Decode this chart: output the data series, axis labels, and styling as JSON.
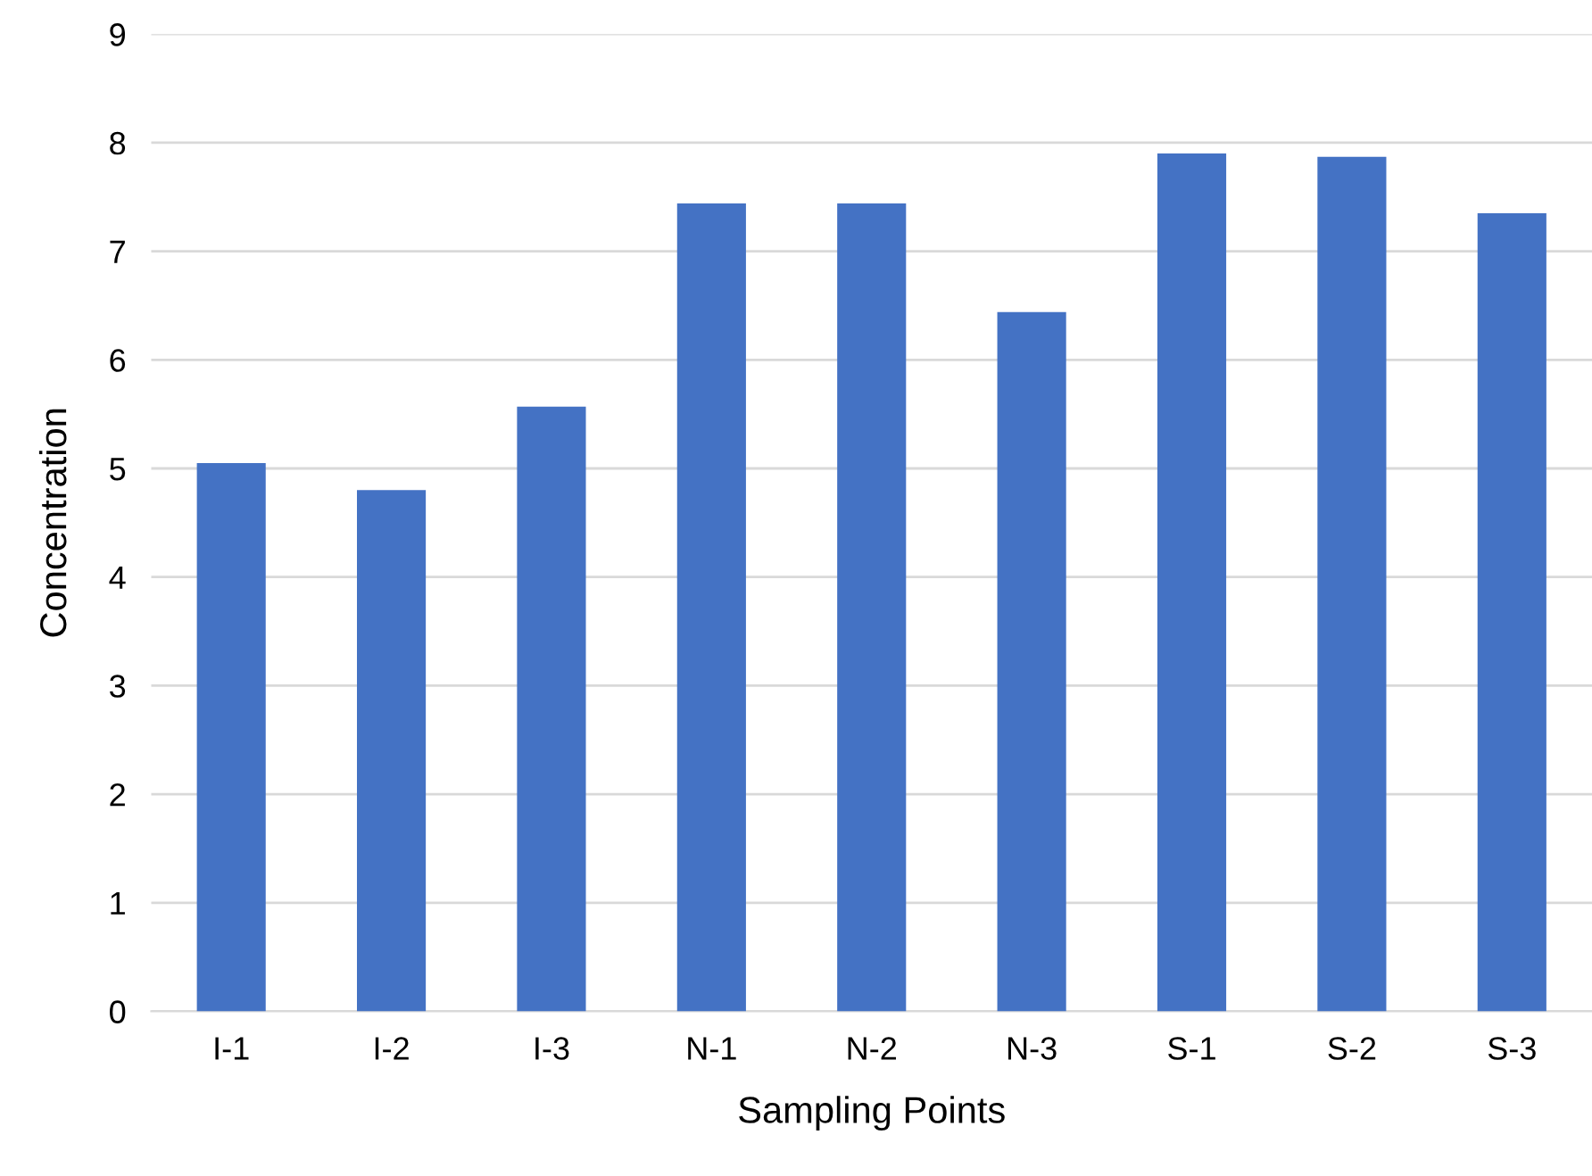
{
  "chart_data": {
    "type": "bar",
    "xlabel": "Sampling Points",
    "ylabel": "Concentration",
    "categories": [
      "I-1",
      "I-2",
      "I-3",
      "N-1",
      "N-2",
      "N-3",
      "S-1",
      "S-2",
      "S-3"
    ],
    "values": [
      5.05,
      4.8,
      5.57,
      7.44,
      7.44,
      6.44,
      7.9,
      7.87,
      7.35
    ],
    "color": "#4472c4",
    "ylim": [
      0,
      9
    ],
    "yticks": [
      0,
      1,
      2,
      3,
      4,
      5,
      6,
      7,
      8,
      9
    ],
    "grid": "y",
    "legend": false
  }
}
